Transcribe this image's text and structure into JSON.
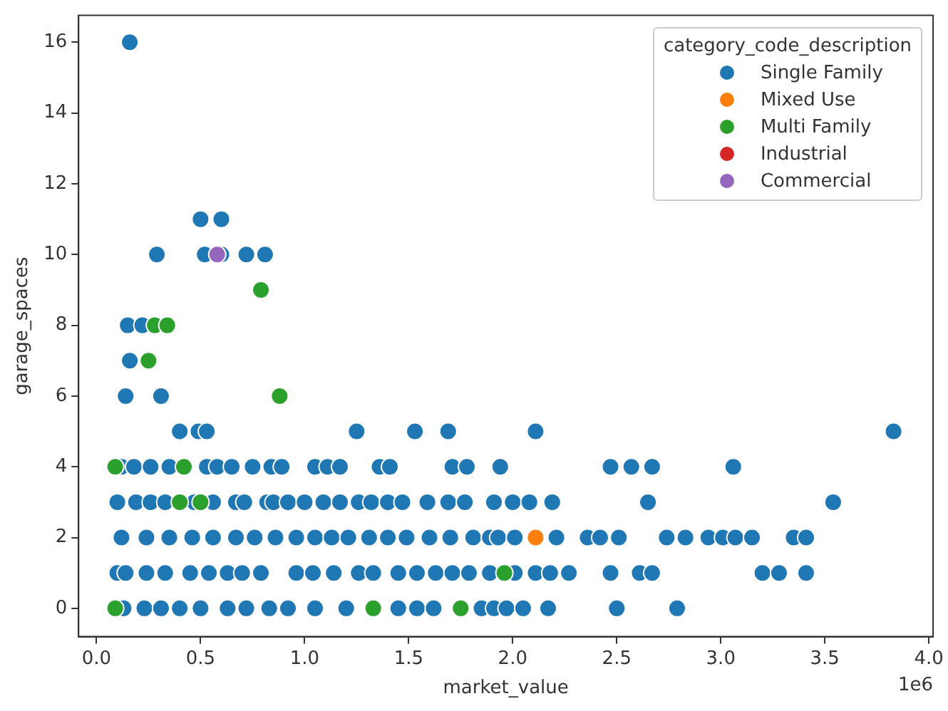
{
  "chart_data": {
    "type": "scatter",
    "xlabel": "market_value",
    "ylabel": "garage_spaces",
    "legend_title": "category_code_description",
    "legend": "top right",
    "grid": false,
    "marker": "circle",
    "xlim": [
      -0.086,
      4.02
    ],
    "ylim": [
      -0.8,
      16.76
    ],
    "xticks": [
      {
        "value": 0,
        "label": "0.0"
      },
      0.5,
      {
        "value": 1,
        "label": "1.0"
      },
      1.5,
      {
        "value": 2,
        "label": "2.0"
      },
      2.5,
      {
        "value": 3,
        "label": "3.0"
      },
      3.5,
      {
        "value": 4,
        "label": "4.0"
      }
    ],
    "yticks": [
      0,
      2,
      4,
      6,
      8,
      10,
      12,
      14,
      16
    ],
    "annotations": [
      "1e6"
    ],
    "series": [
      {
        "name": "Single Family",
        "color": "#1f77b4",
        "x": [
          0.16,
          0.29,
          0.52,
          0.6,
          0.72,
          0.81,
          0.5,
          0.6,
          0.15,
          0.22,
          0.16,
          0.14,
          0.31,
          0.4,
          0.49,
          0.53,
          1.25,
          1.53,
          1.69,
          2.11,
          3.83,
          0.12,
          0.18,
          0.26,
          0.35,
          0.53,
          0.58,
          0.65,
          0.75,
          0.84,
          0.89,
          1.05,
          1.11,
          1.17,
          1.36,
          1.41,
          1.71,
          1.78,
          1.94,
          2.47,
          2.57,
          2.67,
          3.06,
          0.1,
          0.19,
          0.26,
          0.33,
          0.47,
          0.56,
          0.67,
          0.71,
          0.82,
          0.85,
          0.92,
          1.0,
          1.09,
          1.17,
          1.26,
          1.32,
          1.4,
          1.47,
          1.59,
          1.69,
          1.77,
          1.91,
          2.0,
          2.08,
          2.19,
          2.65,
          3.54,
          0.12,
          0.24,
          0.35,
          0.46,
          0.56,
          0.67,
          0.76,
          0.86,
          0.96,
          1.05,
          1.13,
          1.21,
          1.31,
          1.4,
          1.49,
          1.6,
          1.7,
          1.81,
          1.89,
          1.93,
          2.01,
          2.21,
          2.36,
          2.42,
          2.51,
          2.74,
          2.83,
          2.94,
          3.01,
          3.07,
          3.15,
          3.35,
          3.41,
          0.1,
          0.14,
          0.24,
          0.33,
          0.45,
          0.54,
          0.63,
          0.7,
          0.79,
          0.96,
          1.04,
          1.14,
          1.26,
          1.33,
          1.45,
          1.54,
          1.63,
          1.71,
          1.79,
          1.89,
          2.01,
          2.11,
          2.18,
          2.27,
          2.47,
          2.61,
          2.67,
          3.2,
          3.28,
          3.41,
          0.13,
          0.23,
          0.31,
          0.4,
          0.5,
          0.63,
          0.72,
          0.83,
          0.92,
          1.05,
          1.2,
          1.45,
          1.54,
          1.62,
          1.85,
          1.91,
          1.97,
          2.05,
          2.17,
          2.5,
          2.79
        ],
        "values": [
          16,
          10,
          10,
          10,
          10,
          10,
          11,
          11,
          8,
          8,
          7,
          6,
          6,
          5,
          5,
          5,
          5,
          5,
          5,
          5,
          5,
          4,
          4,
          4,
          4,
          4,
          4,
          4,
          4,
          4,
          4,
          4,
          4,
          4,
          4,
          4,
          4,
          4,
          4,
          4,
          4,
          4,
          4,
          3,
          3,
          3,
          3,
          3,
          3,
          3,
          3,
          3,
          3,
          3,
          3,
          3,
          3,
          3,
          3,
          3,
          3,
          3,
          3,
          3,
          3,
          3,
          3,
          3,
          3,
          3,
          2,
          2,
          2,
          2,
          2,
          2,
          2,
          2,
          2,
          2,
          2,
          2,
          2,
          2,
          2,
          2,
          2,
          2,
          2,
          2,
          2,
          2,
          2,
          2,
          2,
          2,
          2,
          2,
          2,
          2,
          2,
          2,
          2,
          1,
          1,
          1,
          1,
          1,
          1,
          1,
          1,
          1,
          1,
          1,
          1,
          1,
          1,
          1,
          1,
          1,
          1,
          1,
          1,
          1,
          1,
          1,
          1,
          1,
          1,
          1,
          1,
          1,
          1,
          0,
          0,
          0,
          0,
          0,
          0,
          0,
          0,
          0,
          0,
          0,
          0,
          0,
          0,
          0,
          0,
          0,
          0,
          0,
          0,
          0
        ]
      },
      {
        "name": "Mixed Use",
        "color": "#ff7f0e",
        "x": [
          2.11
        ],
        "values": [
          2
        ]
      },
      {
        "name": "Multi Family",
        "color": "#2ca02c",
        "x": [
          0.09,
          0.42,
          0.4,
          0.5,
          0.09,
          1.33,
          1.75,
          1.96,
          0.25,
          0.88,
          0.28,
          0.34,
          0.79
        ],
        "values": [
          4,
          4,
          3,
          3,
          0,
          0,
          0,
          1,
          7,
          6,
          8,
          8,
          9
        ]
      },
      {
        "name": "Industrial",
        "color": "#d62728"
      },
      {
        "name": "Commercial",
        "color": "#9467bd",
        "x": [
          0.58
        ],
        "values": [
          10
        ]
      }
    ]
  }
}
